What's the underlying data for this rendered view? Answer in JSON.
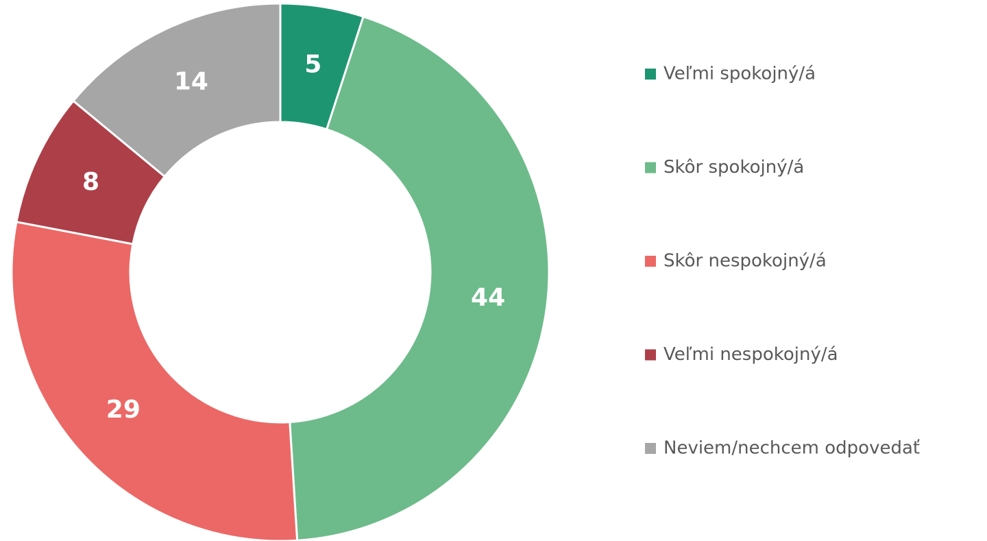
{
  "chart_data": {
    "type": "donut",
    "categories": [
      "Veľmi spokojný/á",
      "Skôr spokojný/á",
      "Skôr nespokojný/á",
      "Veľmi nespokojný/á",
      "Neviem/nechcem odpovedať"
    ],
    "values": [
      5,
      44,
      29,
      8,
      14
    ],
    "colors": [
      "#1d9570",
      "#6dbb8b",
      "#eb6866",
      "#ad3f48",
      "#a6a6a6"
    ],
    "legend": "right"
  }
}
